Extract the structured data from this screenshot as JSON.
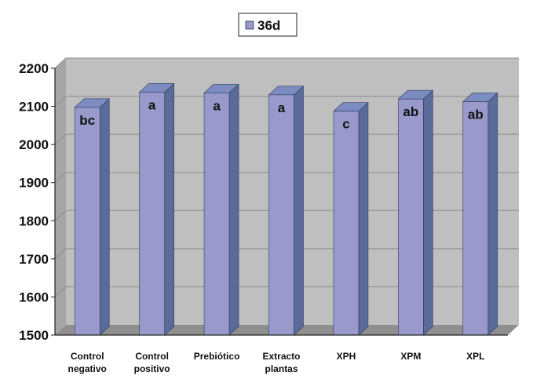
{
  "chart_data": {
    "type": "bar",
    "categories": [
      [
        "Control",
        "negativo"
      ],
      [
        "Control",
        "positivo"
      ],
      [
        "Prebiótico"
      ],
      [
        "Extracto",
        "plantas"
      ],
      [
        "XPH"
      ],
      [
        "XPM"
      ],
      [
        "XPL"
      ]
    ],
    "series": [
      {
        "name": "36d",
        "values": [
          2120,
          2160,
          2158,
          2153,
          2110,
          2142,
          2135
        ],
        "letters": [
          "bc",
          "a",
          "a",
          "a",
          "c",
          "ab",
          "ab"
        ],
        "color": "#9999cc",
        "side_color": "#5a6b9a",
        "top_color": "#7d8cc0"
      }
    ],
    "yticks": [
      1500,
      1600,
      1700,
      1800,
      1900,
      2000,
      2100,
      2200
    ],
    "ylim": [
      1500,
      2200
    ],
    "grid": true,
    "legend_position": "top-center",
    "colors": {
      "wall": "#bfbfbf",
      "wall_side": "#a6a6a6",
      "floor": "#8f8f8f",
      "grid": "#8c8c8c"
    }
  }
}
